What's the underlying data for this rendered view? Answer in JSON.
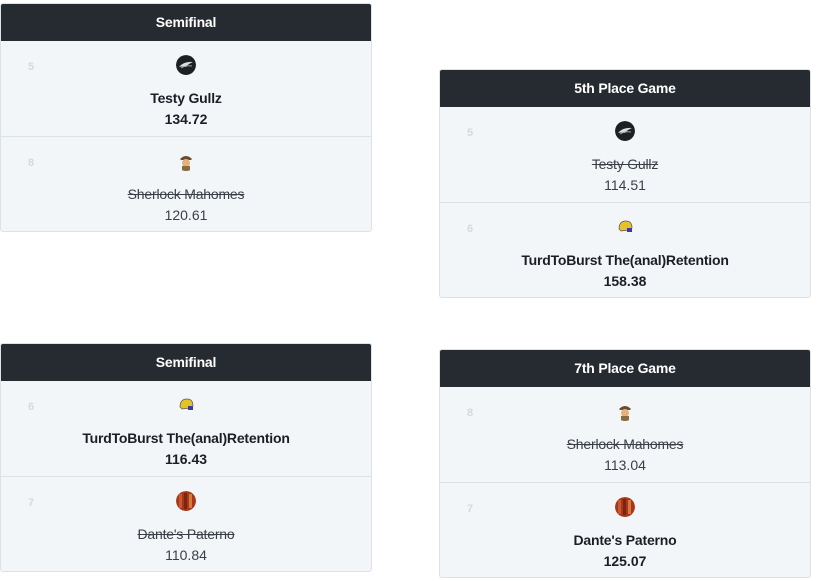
{
  "matchups": [
    {
      "title": "Semifinal",
      "teams": [
        {
          "seed": "5",
          "name": "Testy Gullz",
          "score": "134.72",
          "result": "winner",
          "avatar": "eagle-icon"
        },
        {
          "seed": "8",
          "name": "Sherlock Mahomes",
          "score": "120.61",
          "result": "loser",
          "avatar": "detective-icon"
        }
      ]
    },
    {
      "title": "5th Place Game",
      "teams": [
        {
          "seed": "5",
          "name": "Testy Gullz",
          "score": "114.51",
          "result": "loser",
          "avatar": "eagle-icon"
        },
        {
          "seed": "6",
          "name": "TurdToBurst The(anal)Retention",
          "score": "158.38",
          "result": "winner",
          "avatar": "helmet-icon"
        }
      ]
    },
    {
      "title": "Semifinal",
      "teams": [
        {
          "seed": "6",
          "name": "TurdToBurst The(anal)Retention",
          "score": "116.43",
          "result": "winner",
          "avatar": "helmet-icon"
        },
        {
          "seed": "7",
          "name": "Dante's Paterno",
          "score": "110.84",
          "result": "loser",
          "avatar": "photo-icon"
        }
      ]
    },
    {
      "title": "7th Place Game",
      "teams": [
        {
          "seed": "8",
          "name": "Sherlock Mahomes",
          "score": "113.04",
          "result": "loser",
          "avatar": "detective-icon"
        },
        {
          "seed": "7",
          "name": "Dante's Paterno",
          "score": "125.07",
          "result": "winner",
          "avatar": "photo-icon"
        }
      ]
    }
  ],
  "colors": {
    "header_bg": "#262a31",
    "card_bg": "#f3f6f9",
    "border": "#dde2e7",
    "seed_text": "#d5d9de"
  }
}
